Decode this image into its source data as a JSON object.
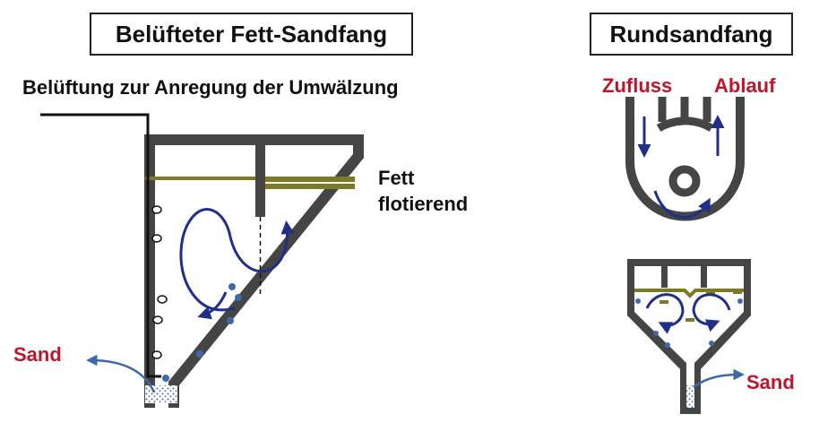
{
  "left": {
    "title": "Belüfteter Fett-Sandfang",
    "aeration_label": "Belüftung zur Anregung der Umwälzung",
    "grease_label_line1": "Fett",
    "grease_label_line2": "flotierend",
    "sand_label": "Sand"
  },
  "right": {
    "title": "Rundsandfang",
    "inflow_label": "Zufluss",
    "outflow_label": "Ablauf",
    "sand_label": "Sand"
  },
  "colors": {
    "wall": "#454545",
    "grease": "#7d7a25",
    "flow_arrow": "#1f2f8a",
    "sand_arrow": "#3a6aa8",
    "sand_dot": "#3f6aa8",
    "label_red": "#c0152a"
  }
}
